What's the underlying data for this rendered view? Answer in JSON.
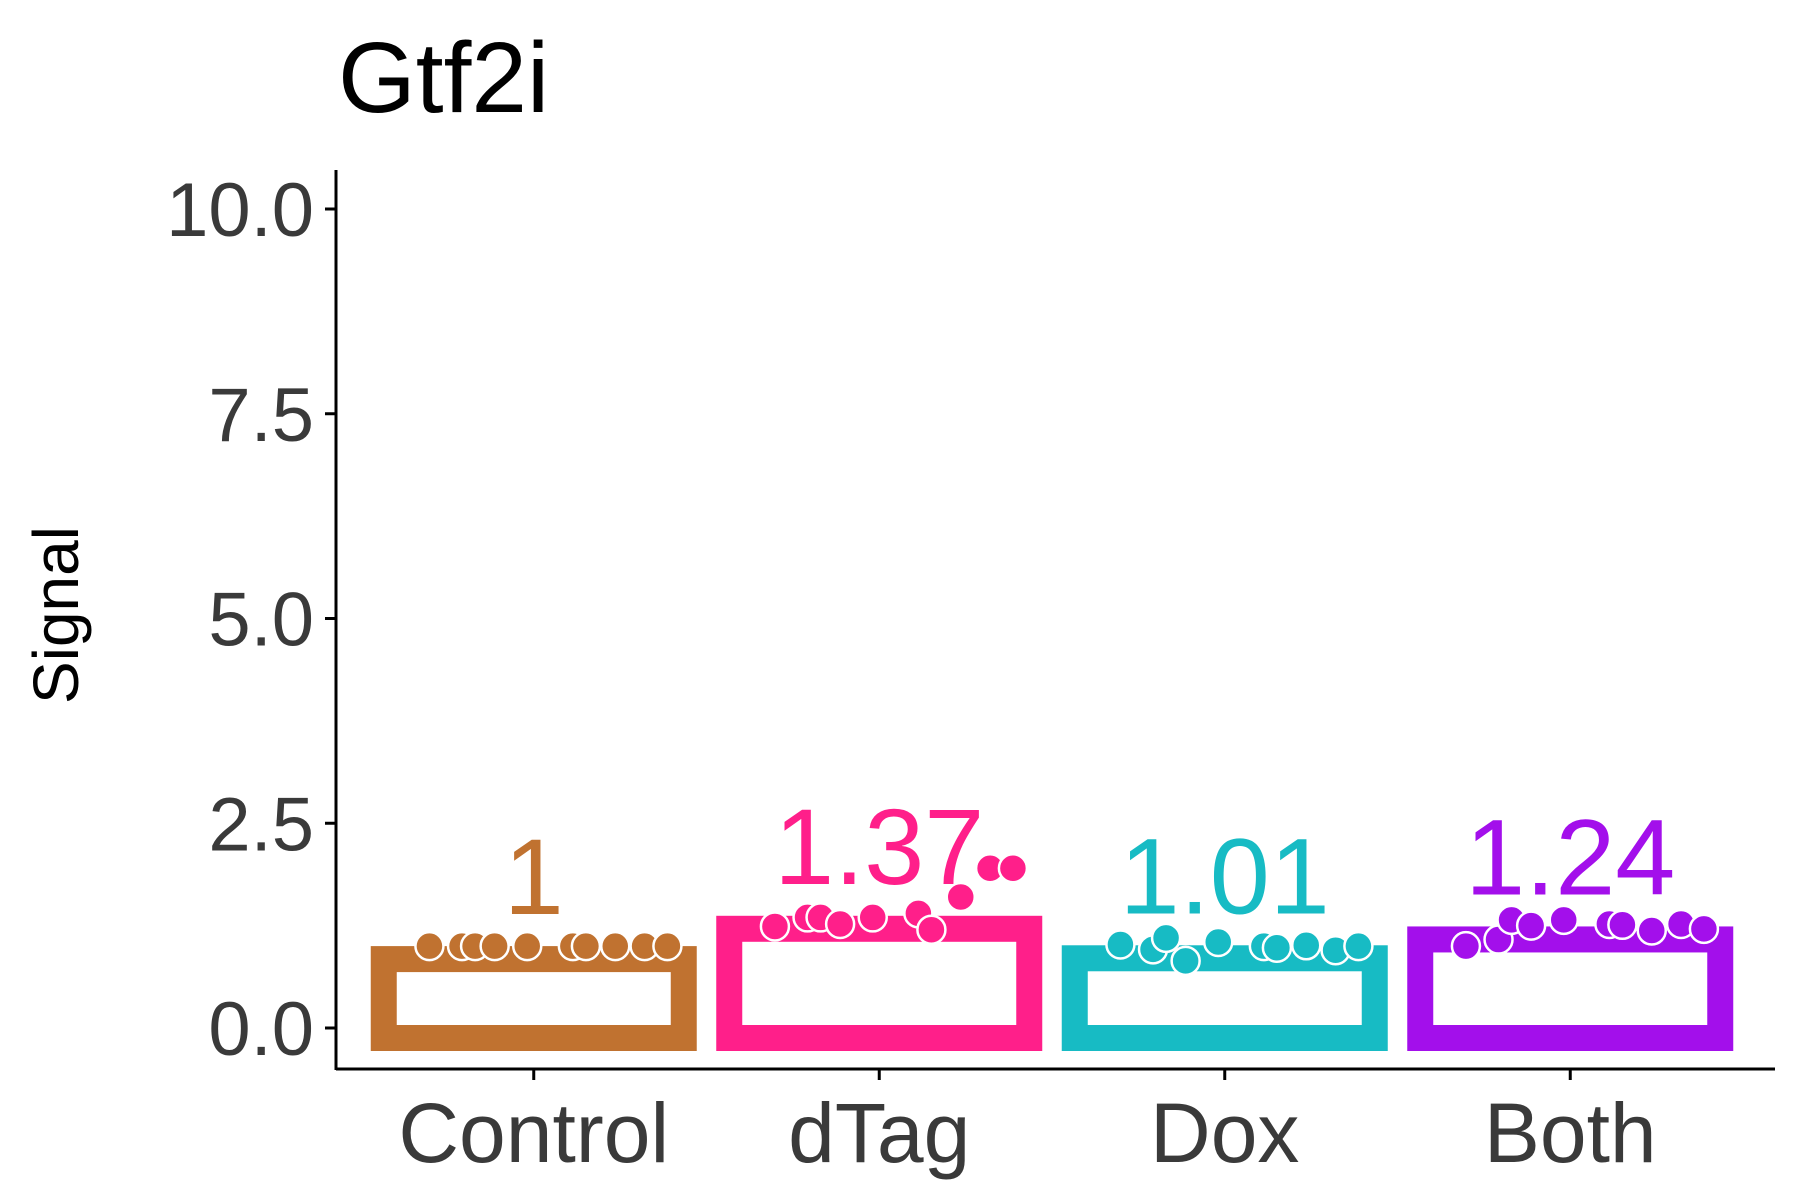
{
  "chart_data": {
    "type": "bar",
    "title": "Gtf2i",
    "xlabel": "",
    "ylabel": "Signal",
    "ylim": [
      0,
      10
    ],
    "yticks": [
      "0.0",
      "2.5",
      "5.0",
      "7.5",
      "10.0"
    ],
    "ytick_values": [
      0,
      2.5,
      5,
      7.5,
      10
    ],
    "grid": false,
    "categories": [
      "Control",
      "dTag",
      "Dox",
      "Both"
    ],
    "values": [
      1,
      1.37,
      1.01,
      1.24
    ],
    "value_labels": [
      "1",
      "1.37",
      "1.01",
      "1.24"
    ],
    "colors": [
      "#C07230",
      "#FF1F8A",
      "#17BBC4",
      "#A30FEB"
    ],
    "points": [
      [
        1.0,
        1.0,
        1.0,
        1.0,
        1.0,
        1.0,
        1.0,
        1.0,
        1.0,
        1.0
      ],
      [
        1.24,
        1.35,
        1.35,
        1.27,
        1.35,
        1.4,
        1.2,
        1.6,
        1.95,
        1.95
      ],
      [
        1.02,
        0.96,
        1.1,
        0.82,
        1.05,
        1.0,
        0.98,
        1.01,
        0.95,
        1.0
      ],
      [
        1.0,
        1.08,
        1.32,
        1.25,
        1.32,
        1.27,
        1.26,
        1.19,
        1.27,
        1.21
      ]
    ]
  }
}
